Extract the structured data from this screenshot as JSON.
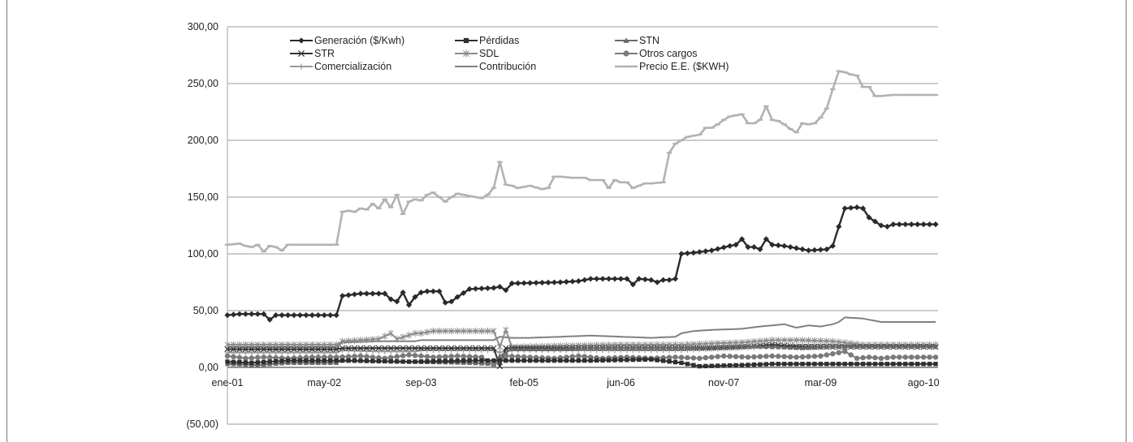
{
  "chart_data": {
    "type": "line",
    "title": "",
    "xlabel": "",
    "ylabel": "",
    "ylim": [
      -50,
      300
    ],
    "y_ticks": [
      "300,00",
      "250,00",
      "200,00",
      "150,00",
      "100,00",
      "50,00",
      "0,00",
      "(50,00)"
    ],
    "y_tick_values": [
      300,
      250,
      200,
      150,
      100,
      50,
      0,
      -50
    ],
    "x_tick_labels": [
      "ene-01",
      "may-02",
      "sep-03",
      "feb-05",
      "jun-06",
      "nov-07",
      "mar-09",
      "ago-10"
    ],
    "x_tick_index": [
      0,
      16,
      32,
      49,
      65,
      82,
      98,
      115
    ],
    "n_points": 118,
    "grid": true,
    "legend_position": "top",
    "series": [
      {
        "name": "Generación ($/Kwh)",
        "color": "#2a2a2a",
        "marker": "diamond",
        "keys": [
          [
            0,
            46
          ],
          [
            2,
            47
          ],
          [
            6,
            47
          ],
          [
            7,
            42
          ],
          [
            8,
            46
          ],
          [
            18,
            46
          ],
          [
            19,
            63
          ],
          [
            22,
            65
          ],
          [
            26,
            65
          ],
          [
            27,
            60
          ],
          [
            28,
            58
          ],
          [
            29,
            66
          ],
          [
            30,
            55
          ],
          [
            31,
            62
          ],
          [
            32,
            66
          ],
          [
            33,
            67
          ],
          [
            35,
            67
          ],
          [
            36,
            57
          ],
          [
            37,
            58
          ],
          [
            38,
            62
          ],
          [
            40,
            69
          ],
          [
            44,
            70
          ],
          [
            45,
            71
          ],
          [
            46,
            68
          ],
          [
            47,
            74
          ],
          [
            55,
            75
          ],
          [
            58,
            76
          ],
          [
            60,
            78
          ],
          [
            66,
            78
          ],
          [
            67,
            73
          ],
          [
            68,
            78
          ],
          [
            70,
            77
          ],
          [
            71,
            75
          ],
          [
            72,
            77
          ],
          [
            73,
            77
          ],
          [
            74,
            78
          ],
          [
            75,
            100
          ],
          [
            77,
            101
          ],
          [
            80,
            103
          ],
          [
            83,
            107
          ],
          [
            84,
            108
          ],
          [
            85,
            113
          ],
          [
            86,
            106
          ],
          [
            87,
            106
          ],
          [
            88,
            104
          ],
          [
            89,
            113
          ],
          [
            90,
            108
          ],
          [
            92,
            107
          ],
          [
            94,
            105
          ],
          [
            96,
            103
          ],
          [
            99,
            104
          ],
          [
            100,
            107
          ],
          [
            101,
            124
          ],
          [
            102,
            140
          ],
          [
            104,
            141
          ],
          [
            105,
            140
          ],
          [
            106,
            132
          ],
          [
            108,
            125
          ],
          [
            109,
            124
          ],
          [
            110,
            126
          ]
        ]
      },
      {
        "name": "Pérdidas",
        "color": "#2f2f2f",
        "marker": "square",
        "keys": [
          [
            0,
            5
          ],
          [
            4,
            4
          ],
          [
            10,
            6
          ],
          [
            20,
            6
          ],
          [
            30,
            5
          ],
          [
            40,
            6
          ],
          [
            50,
            6
          ],
          [
            60,
            6
          ],
          [
            70,
            7
          ],
          [
            75,
            4
          ],
          [
            78,
            1
          ],
          [
            85,
            2
          ],
          [
            90,
            3
          ],
          [
            100,
            3
          ],
          [
            110,
            3
          ]
        ]
      },
      {
        "name": "STN",
        "color": "#6a6a6a",
        "marker": "triangle",
        "keys": [
          [
            0,
            3
          ],
          [
            5,
            2
          ],
          [
            10,
            4
          ],
          [
            18,
            4
          ],
          [
            19,
            6
          ],
          [
            30,
            5
          ],
          [
            40,
            4
          ],
          [
            44,
            3
          ],
          [
            45,
            10
          ],
          [
            47,
            16
          ],
          [
            55,
            16
          ],
          [
            60,
            17
          ],
          [
            70,
            17
          ],
          [
            75,
            17
          ],
          [
            80,
            18
          ],
          [
            85,
            19
          ],
          [
            90,
            18
          ],
          [
            95,
            17
          ],
          [
            100,
            18
          ],
          [
            105,
            18
          ],
          [
            110,
            18
          ]
        ]
      },
      {
        "name": "STR",
        "color": "#333333",
        "marker": "x",
        "keys": [
          [
            0,
            16
          ],
          [
            18,
            16
          ],
          [
            19,
            17
          ],
          [
            30,
            17
          ],
          [
            44,
            17
          ],
          [
            45,
            1
          ],
          [
            46,
            17
          ],
          [
            55,
            17
          ],
          [
            70,
            17
          ],
          [
            80,
            17
          ],
          [
            85,
            18
          ],
          [
            90,
            20
          ],
          [
            95,
            18
          ],
          [
            100,
            18
          ],
          [
            110,
            18
          ]
        ]
      },
      {
        "name": "SDL",
        "color": "#8c8c8c",
        "marker": "star",
        "keys": [
          [
            0,
            20
          ],
          [
            18,
            20
          ],
          [
            19,
            23
          ],
          [
            25,
            25
          ],
          [
            27,
            30
          ],
          [
            28,
            25
          ],
          [
            31,
            30
          ],
          [
            32,
            30
          ],
          [
            34,
            32
          ],
          [
            44,
            32
          ],
          [
            45,
            18
          ],
          [
            46,
            33
          ],
          [
            47,
            18
          ],
          [
            55,
            19
          ],
          [
            65,
            20
          ],
          [
            75,
            20
          ],
          [
            80,
            21
          ],
          [
            85,
            22
          ],
          [
            90,
            24
          ],
          [
            95,
            24
          ],
          [
            100,
            23
          ],
          [
            105,
            20
          ],
          [
            110,
            20
          ]
        ]
      },
      {
        "name": "Otros cargos",
        "color": "#7a7a7a",
        "marker": "circle",
        "keys": [
          [
            0,
            10
          ],
          [
            3,
            8
          ],
          [
            6,
            9
          ],
          [
            10,
            8
          ],
          [
            14,
            9
          ],
          [
            18,
            9
          ],
          [
            22,
            10
          ],
          [
            26,
            8
          ],
          [
            30,
            11
          ],
          [
            34,
            9
          ],
          [
            38,
            10
          ],
          [
            42,
            9
          ],
          [
            44,
            2
          ],
          [
            46,
            10
          ],
          [
            50,
            9
          ],
          [
            54,
            8
          ],
          [
            58,
            10
          ],
          [
            62,
            8
          ],
          [
            66,
            9
          ],
          [
            70,
            8
          ],
          [
            74,
            9
          ],
          [
            78,
            8
          ],
          [
            82,
            10
          ],
          [
            86,
            9
          ],
          [
            90,
            10
          ],
          [
            94,
            9
          ],
          [
            98,
            10
          ],
          [
            102,
            14
          ],
          [
            104,
            8
          ],
          [
            106,
            9
          ],
          [
            108,
            8
          ],
          [
            110,
            9
          ]
        ]
      },
      {
        "name": "Comercialización",
        "color": "#9a9a9a",
        "marker": "plus",
        "keys": [
          [
            0,
            13
          ],
          [
            18,
            13
          ],
          [
            19,
            15
          ],
          [
            25,
            14
          ],
          [
            31,
            14
          ],
          [
            32,
            15
          ],
          [
            44,
            15
          ],
          [
            45,
            13
          ],
          [
            46,
            15
          ],
          [
            55,
            15
          ],
          [
            65,
            15
          ],
          [
            75,
            15
          ],
          [
            80,
            16
          ],
          [
            85,
            17
          ],
          [
            90,
            18
          ],
          [
            95,
            20
          ],
          [
            100,
            20
          ],
          [
            105,
            19
          ],
          [
            110,
            19
          ]
        ]
      },
      {
        "name": "Contribución",
        "color": "#808080",
        "marker": "none",
        "keys": [
          [
            0,
            18
          ],
          [
            18,
            18
          ],
          [
            19,
            22
          ],
          [
            25,
            23
          ],
          [
            31,
            23
          ],
          [
            32,
            24
          ],
          [
            44,
            24
          ],
          [
            45,
            27
          ],
          [
            47,
            26
          ],
          [
            50,
            26
          ],
          [
            55,
            27
          ],
          [
            60,
            28
          ],
          [
            65,
            27
          ],
          [
            70,
            26
          ],
          [
            74,
            27
          ],
          [
            75,
            30
          ],
          [
            77,
            32
          ],
          [
            80,
            33
          ],
          [
            85,
            34
          ],
          [
            88,
            36
          ],
          [
            90,
            37
          ],
          [
            92,
            38
          ],
          [
            94,
            35
          ],
          [
            96,
            37
          ],
          [
            98,
            36
          ],
          [
            100,
            38
          ],
          [
            101,
            40
          ],
          [
            102,
            44
          ],
          [
            105,
            43
          ],
          [
            106,
            42
          ],
          [
            108,
            40
          ],
          [
            110,
            40
          ]
        ]
      },
      {
        "name": "Precio E.E. ($KWH)",
        "color": "#b2b2b2",
        "marker": "dash",
        "keys": [
          [
            0,
            108
          ],
          [
            2,
            109
          ],
          [
            3,
            107
          ],
          [
            4,
            106
          ],
          [
            5,
            108
          ],
          [
            6,
            102
          ],
          [
            7,
            107
          ],
          [
            8,
            106
          ],
          [
            9,
            103
          ],
          [
            10,
            108
          ],
          [
            18,
            108
          ],
          [
            19,
            137
          ],
          [
            20,
            138
          ],
          [
            21,
            137
          ],
          [
            22,
            140
          ],
          [
            23,
            139
          ],
          [
            24,
            144
          ],
          [
            25,
            140
          ],
          [
            26,
            148
          ],
          [
            27,
            141
          ],
          [
            28,
            152
          ],
          [
            29,
            135
          ],
          [
            30,
            146
          ],
          [
            31,
            148
          ],
          [
            32,
            147
          ],
          [
            33,
            152
          ],
          [
            34,
            154
          ],
          [
            35,
            150
          ],
          [
            36,
            146
          ],
          [
            37,
            150
          ],
          [
            38,
            153
          ],
          [
            40,
            151
          ],
          [
            42,
            149
          ],
          [
            43,
            152
          ],
          [
            44,
            158
          ],
          [
            45,
            181
          ],
          [
            46,
            161
          ],
          [
            47,
            160
          ],
          [
            48,
            158
          ],
          [
            50,
            160
          ],
          [
            52,
            157
          ],
          [
            53,
            158
          ],
          [
            54,
            168
          ],
          [
            55,
            168
          ],
          [
            57,
            167
          ],
          [
            59,
            167
          ],
          [
            60,
            165
          ],
          [
            62,
            165
          ],
          [
            63,
            158
          ],
          [
            64,
            165
          ],
          [
            65,
            163
          ],
          [
            66,
            163
          ],
          [
            67,
            158
          ],
          [
            68,
            160
          ],
          [
            69,
            162
          ],
          [
            70,
            162
          ],
          [
            72,
            163
          ],
          [
            73,
            189
          ],
          [
            74,
            197
          ],
          [
            75,
            200
          ],
          [
            76,
            203
          ],
          [
            78,
            205
          ],
          [
            79,
            211
          ],
          [
            80,
            211
          ],
          [
            81,
            214
          ],
          [
            82,
            218
          ],
          [
            83,
            221
          ],
          [
            84,
            222
          ],
          [
            85,
            223
          ],
          [
            86,
            215
          ],
          [
            87,
            215
          ],
          [
            88,
            218
          ],
          [
            89,
            230
          ],
          [
            90,
            218
          ],
          [
            91,
            217
          ],
          [
            92,
            214
          ],
          [
            93,
            210
          ],
          [
            94,
            207
          ],
          [
            95,
            215
          ],
          [
            96,
            214
          ],
          [
            97,
            215
          ],
          [
            98,
            220
          ],
          [
            99,
            228
          ],
          [
            100,
            245
          ],
          [
            101,
            261
          ],
          [
            102,
            260
          ],
          [
            103,
            258
          ],
          [
            104,
            257
          ],
          [
            105,
            247
          ],
          [
            106,
            247
          ],
          [
            107,
            239
          ],
          [
            108,
            239
          ],
          [
            110,
            240
          ]
        ]
      }
    ]
  }
}
